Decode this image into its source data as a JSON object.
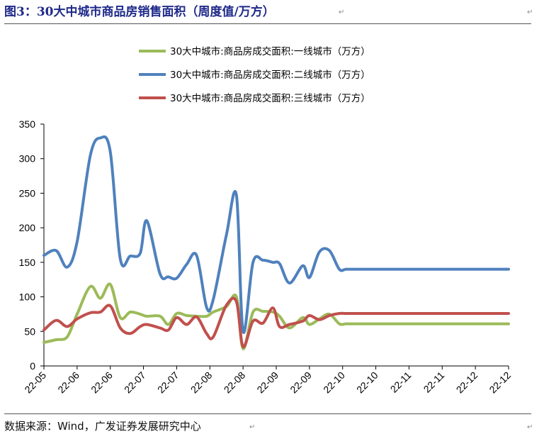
{
  "page": {
    "title": "图3：30大中城市商品房销售面积（周度值/万方）",
    "source": "数据来源：Wind，广发证券发展研究中心"
  },
  "chart_data": {
    "type": "line",
    "ylim": [
      0,
      350
    ],
    "yticks": [
      0,
      50,
      100,
      150,
      200,
      250,
      300,
      350
    ],
    "xticks": [
      "22-05",
      "22-06",
      "22-06",
      "22-07",
      "22-07",
      "22-08",
      "22-08",
      "22-09",
      "22-09",
      "22-10",
      "22-10",
      "22-11",
      "22-11",
      "22-12",
      "22-12"
    ],
    "x": [
      0.0,
      0.37,
      0.7,
      1.0,
      1.4,
      1.7,
      2.0,
      2.3,
      2.6,
      2.9,
      3.1,
      3.5,
      3.75,
      4.0,
      4.3,
      4.6,
      4.9,
      5.1,
      5.5,
      5.8,
      6.0,
      6.3,
      6.6,
      6.9,
      7.1,
      7.4,
      7.8,
      8.0,
      8.3,
      8.6,
      8.9,
      9.1,
      9.4,
      9.7,
      10.0,
      10.4,
      10.7,
      11.0,
      11.3,
      11.6,
      12.0,
      12.3,
      12.7,
      13.0,
      13.3,
      13.6,
      13.9,
      14.0
    ],
    "series": [
      {
        "name": "30大中城市:商品房成交面积:一线城市（万方）",
        "color": "#9bbb59",
        "values": [
          34,
          38,
          42,
          75,
          115,
          98,
          118,
          70,
          78,
          75,
          72,
          72,
          60,
          76,
          73,
          72,
          72,
          78,
          86,
          100,
          25,
          78,
          79,
          78,
          72,
          55,
          70,
          60,
          68,
          75,
          61,
          61,
          61,
          61,
          61,
          61,
          61,
          61,
          61,
          61,
          61,
          61,
          61,
          61,
          61,
          61,
          61,
          61
        ]
      },
      {
        "name": "30大中城市:商品房成交面积:二线城市（万方）",
        "color": "#4f81bd",
        "values": [
          160,
          167,
          143,
          180,
          305,
          330,
          310,
          155,
          159,
          163,
          210,
          133,
          129,
          127,
          147,
          160,
          85,
          96,
          190,
          247,
          50,
          150,
          153,
          150,
          148,
          120,
          145,
          128,
          165,
          167,
          140,
          140,
          140,
          140,
          140,
          140,
          140,
          140,
          140,
          140,
          140,
          140,
          140,
          140,
          140,
          140,
          140,
          140
        ]
      },
      {
        "name": "30大中城市:商品房成交面积:三线城市（万方）",
        "color": "#c0504d",
        "values": [
          52,
          66,
          57,
          68,
          77,
          78,
          87,
          55,
          47,
          57,
          60,
          55,
          52,
          70,
          60,
          71,
          47,
          42,
          88,
          93,
          28,
          65,
          62,
          84,
          57,
          60,
          65,
          73,
          67,
          73,
          76,
          76,
          76,
          76,
          76,
          76,
          76,
          76,
          76,
          76,
          76,
          76,
          76,
          76,
          76,
          76,
          76,
          76
        ]
      }
    ]
  }
}
